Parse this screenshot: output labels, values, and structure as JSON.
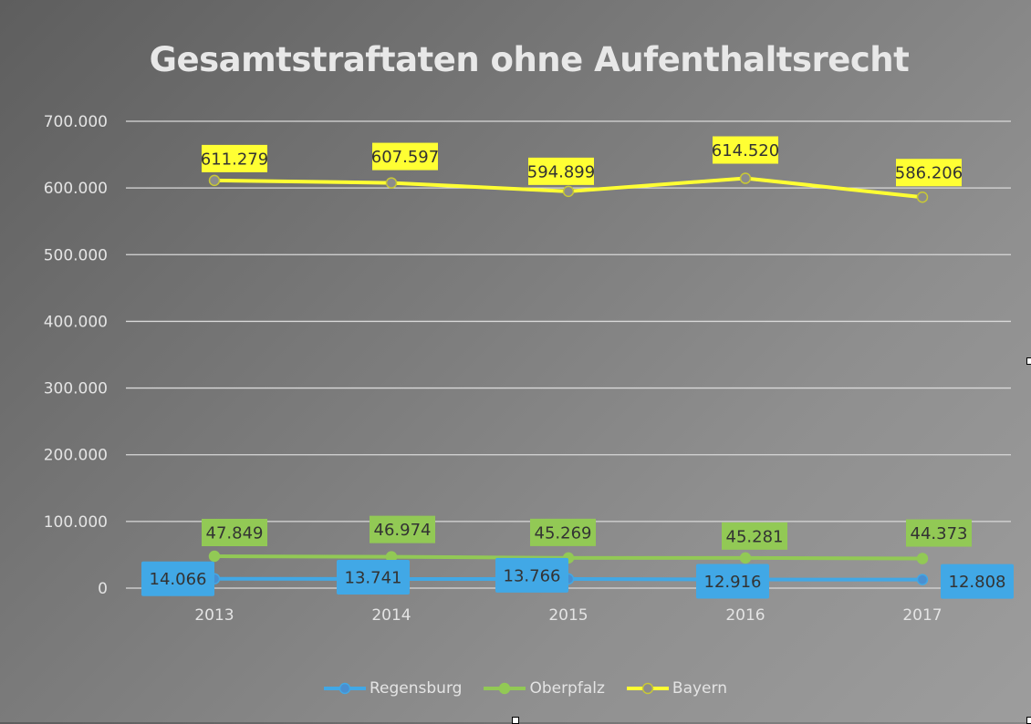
{
  "chart_data": {
    "type": "line",
    "title": "Gesamtstraftaten ohne Aufenthaltsrecht",
    "categories": [
      "2013",
      "2014",
      "2015",
      "2016",
      "2017"
    ],
    "ylim": [
      0,
      700000
    ],
    "yticks": [
      0,
      100000,
      200000,
      300000,
      400000,
      500000,
      600000,
      700000
    ],
    "ytick_labels": [
      "0",
      "100.000",
      "200.000",
      "300.000",
      "400.000",
      "500.000",
      "600.000",
      "700.000"
    ],
    "grid": true,
    "legend_position": "bottom",
    "series": [
      {
        "name": "Regensburg",
        "color": "#41a8e6",
        "values": [
          14066,
          13741,
          13766,
          12916,
          12808
        ],
        "labels": [
          "14.066",
          "13.741",
          "13.766",
          "12.916",
          "12.808"
        ]
      },
      {
        "name": "Oberpfalz",
        "color": "#92c955",
        "values": [
          47849,
          46974,
          45269,
          45281,
          44373
        ],
        "labels": [
          "47.849",
          "46.974",
          "45.269",
          "45.281",
          "44.373"
        ]
      },
      {
        "name": "Bayern",
        "color": "#ffff33",
        "values": [
          611279,
          607597,
          594899,
          614520,
          586206
        ],
        "labels": [
          "611.279",
          "607.597",
          "594.899",
          "614.520",
          "586.206"
        ]
      }
    ]
  }
}
